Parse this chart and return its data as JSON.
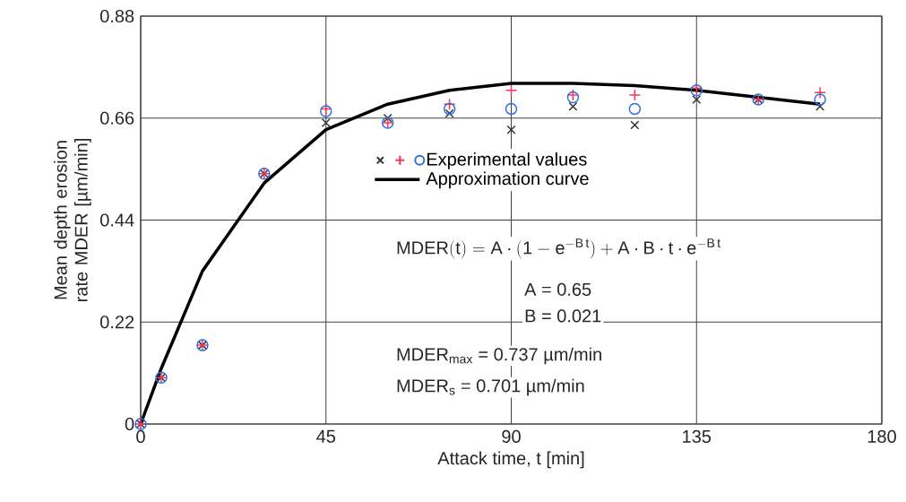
{
  "chart_data": {
    "type": "scatter",
    "xlabel": "Attack time,  t [min]",
    "ylabel": "Mean depth erosion rate MDER  [µm/min]",
    "x": [
      0,
      5,
      15,
      30,
      45,
      60,
      75,
      90,
      105,
      120,
      135,
      150,
      165
    ],
    "series": [
      {
        "marker": "cross",
        "color": "#333333",
        "values": [
          0,
          0.1,
          0.17,
          0.54,
          0.65,
          0.66,
          0.67,
          0.635,
          0.685,
          0.645,
          0.7,
          0.7,
          0.685
        ]
      },
      {
        "marker": "plus",
        "color": "#ff3355",
        "values": [
          0,
          0.1,
          0.17,
          0.54,
          0.68,
          0.65,
          0.69,
          0.72,
          0.71,
          0.71,
          0.725,
          0.7,
          0.715
        ]
      },
      {
        "marker": "circle",
        "name": "Experimental values",
        "color": "#2f6fdf",
        "values": [
          0,
          0.1,
          0.17,
          0.54,
          0.675,
          0.65,
          0.68,
          0.68,
          0.705,
          0.68,
          0.72,
          0.7,
          0.7
        ]
      },
      {
        "type": "line",
        "marker": "none",
        "name": "Approximation curve",
        "color": "#000000",
        "values": [
          0,
          0.12,
          0.33,
          0.52,
          0.635,
          0.69,
          0.72,
          0.735,
          0.735,
          0.73,
          0.72,
          0.705,
          0.69
        ]
      }
    ],
    "xlim": [
      0,
      180
    ],
    "ylim": [
      0,
      0.88
    ],
    "xticks": [
      0,
      45,
      90,
      135,
      180
    ],
    "yticks": [
      0,
      0.22,
      0.44,
      0.66,
      0.88
    ],
    "grid": true,
    "legend": "center",
    "annotations": [
      "\\mathrm{MDER(t) = A\\cdot(1-e^{-B\\,t}) + A\\cdot B\\cdot t\\cdot e^{-B\\,t}}",
      "A = 0.65",
      "B = 0.021",
      "MDER$_{max}$ = 0.737 µm/min",
      "MDER$_{s}$ = 0.701 µm/min"
    ]
  }
}
